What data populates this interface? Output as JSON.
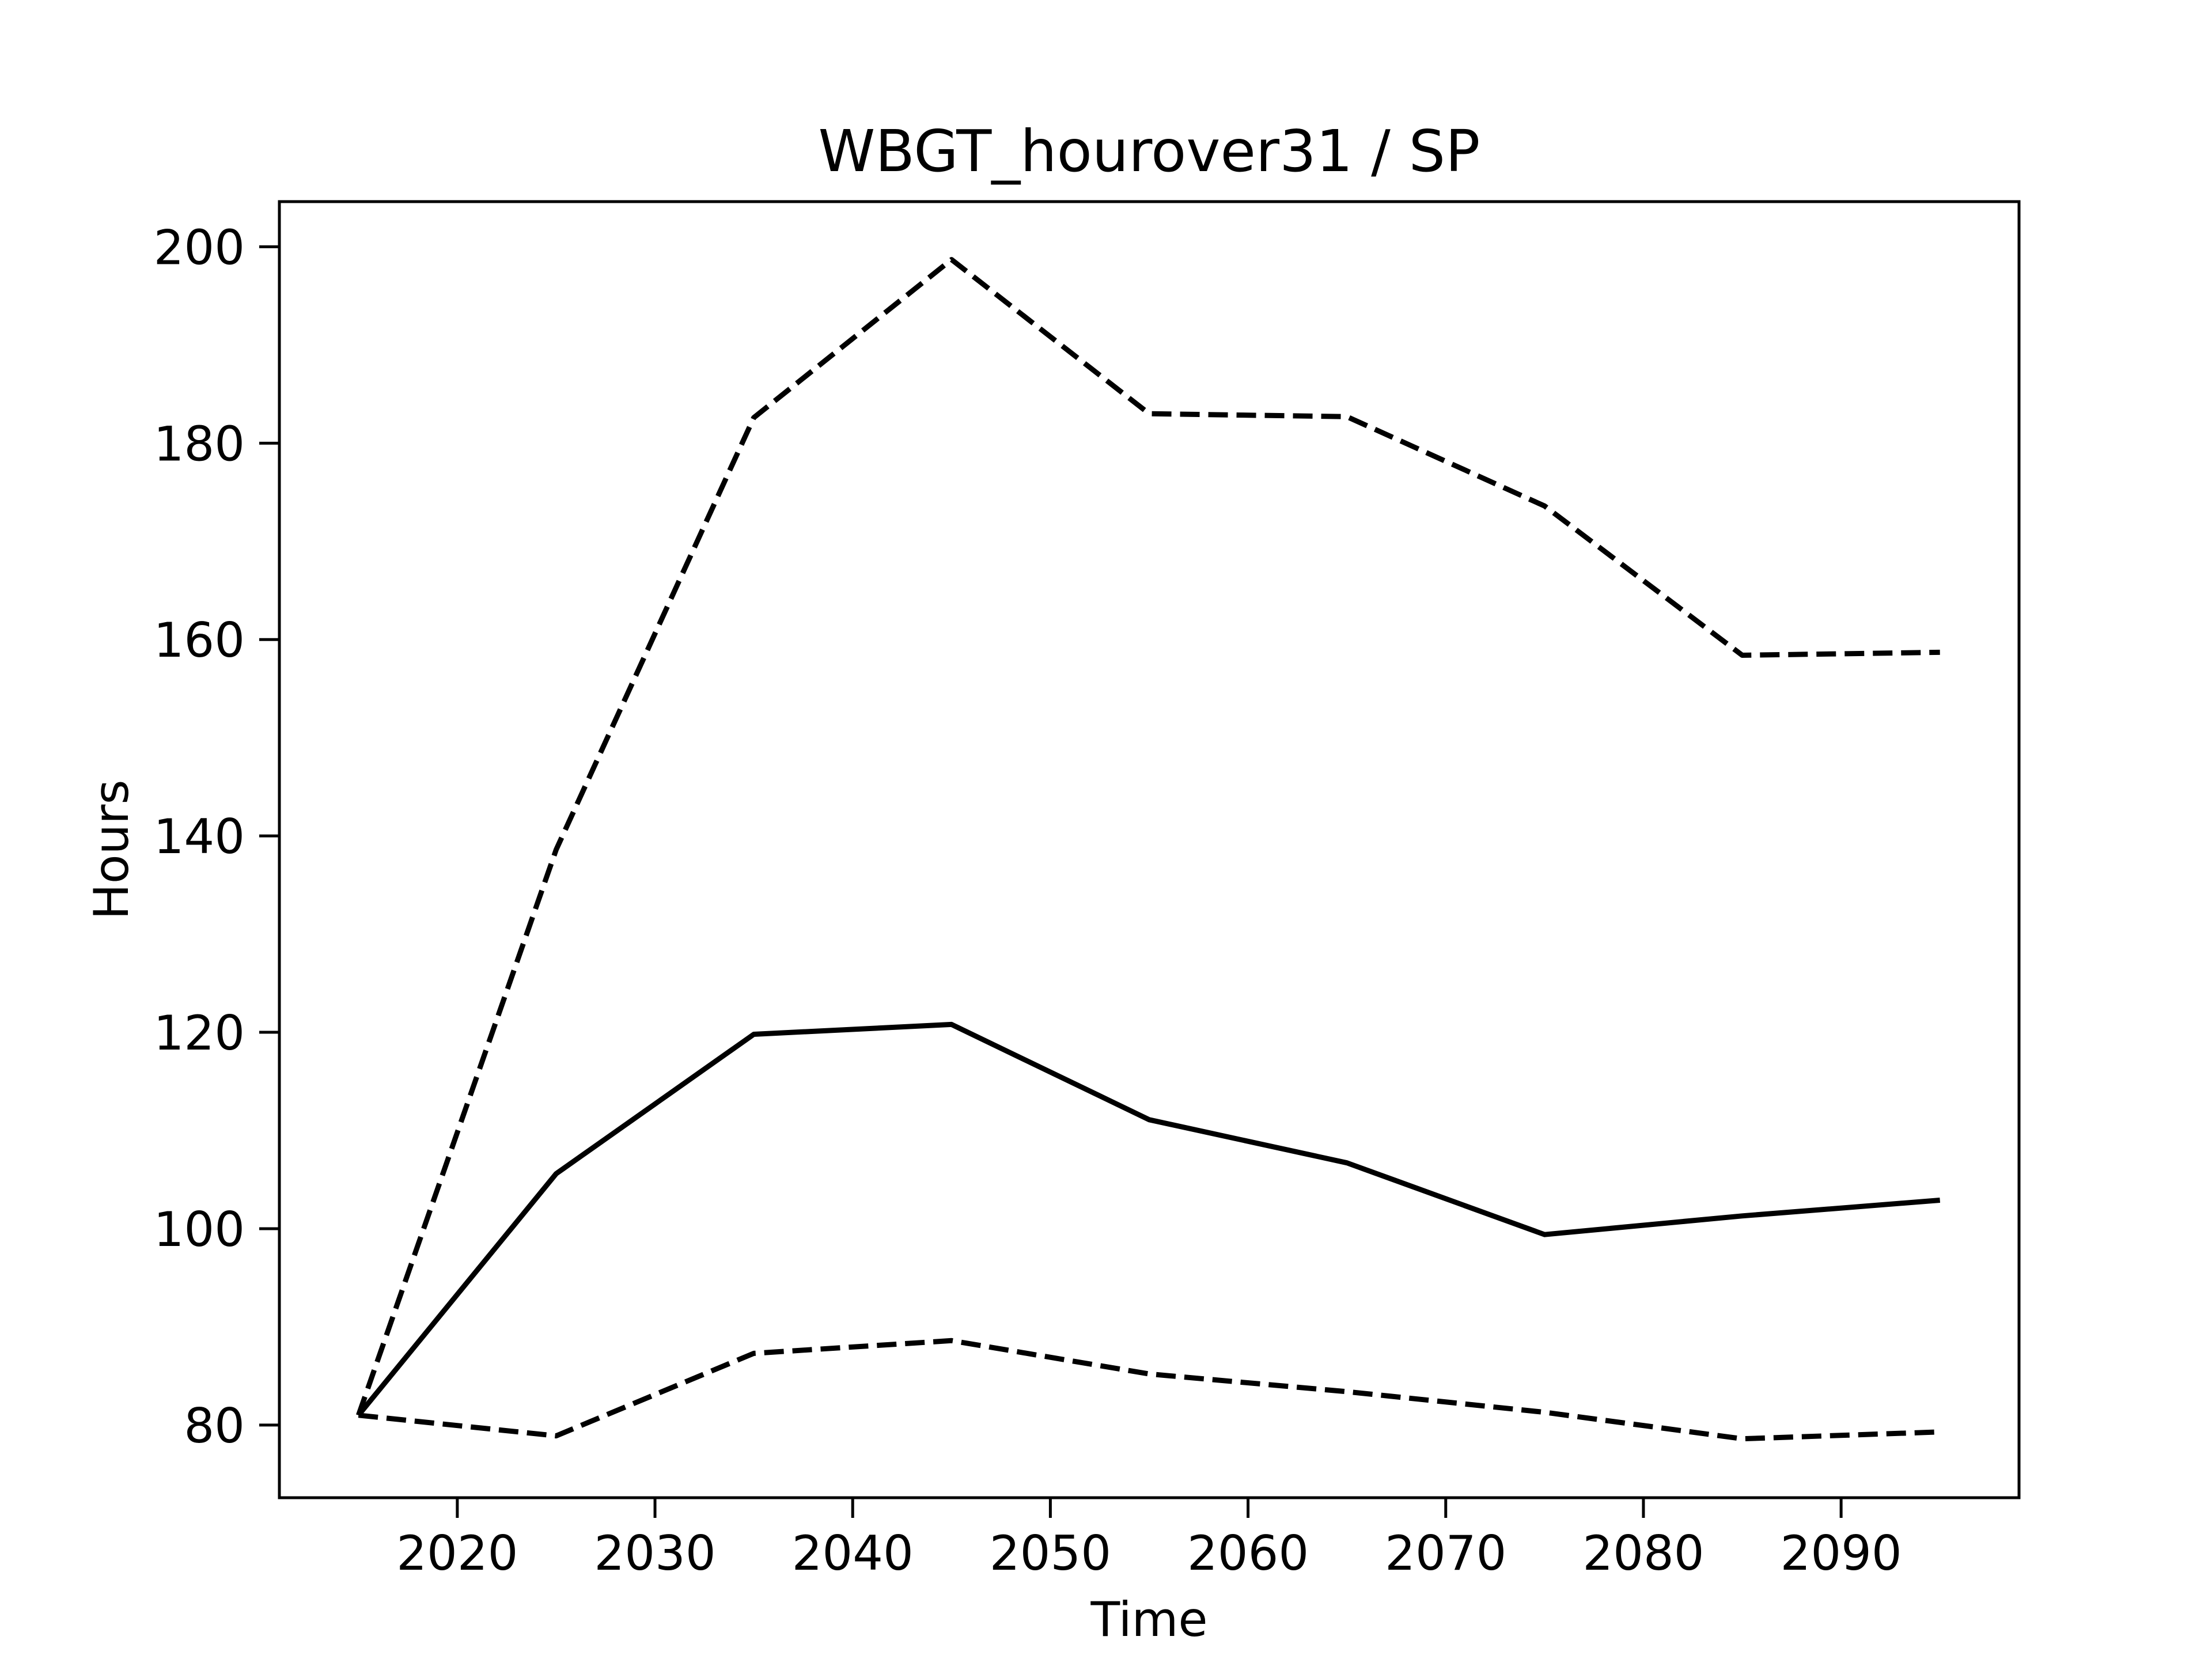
{
  "chart_data": {
    "type": "line",
    "title": "WBGT_hourover31 / SP",
    "xlabel": "Time",
    "ylabel": "Hours",
    "xlim": [
      2011,
      2099
    ],
    "ylim": [
      72.6,
      204.6
    ],
    "xticks": [
      2020,
      2030,
      2040,
      2050,
      2060,
      2070,
      2080,
      2090
    ],
    "yticks": [
      80,
      100,
      120,
      140,
      160,
      180,
      200
    ],
    "grid": false,
    "legend": "none",
    "x": [
      2015,
      2025,
      2035,
      2045,
      2055,
      2065,
      2075,
      2085,
      2095
    ],
    "series": [
      {
        "style": "solid",
        "color": "#000000",
        "values": [
          81.0,
          105.6,
          119.8,
          120.8,
          111.1,
          106.7,
          99.4,
          101.3,
          102.9
        ]
      },
      {
        "style": "dashed",
        "color": "#000000",
        "values": [
          81.0,
          138.6,
          182.6,
          198.7,
          183.0,
          182.7,
          173.6,
          158.4,
          158.7
        ]
      },
      {
        "style": "dashed",
        "color": "#000000",
        "values": [
          81.0,
          78.9,
          87.3,
          88.6,
          85.2,
          83.4,
          81.3,
          78.6,
          79.3
        ]
      }
    ]
  }
}
